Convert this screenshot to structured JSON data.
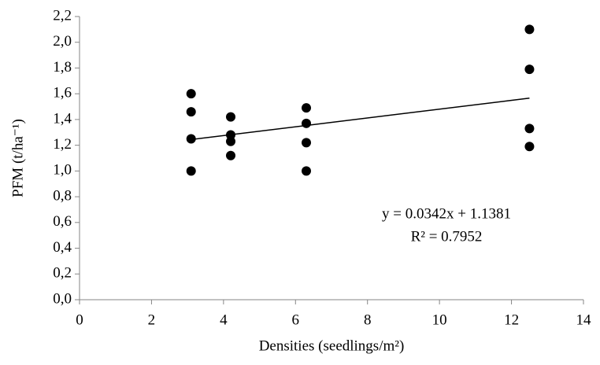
{
  "chart_data": {
    "type": "scatter",
    "xlabel": "Densities (seedlings/m²)",
    "ylabel": "PFM (t/ha⁻¹)",
    "x": [
      3.1,
      3.1,
      3.1,
      3.1,
      4.2,
      4.2,
      4.2,
      4.2,
      6.3,
      6.3,
      6.3,
      6.3,
      12.5,
      12.5,
      12.5,
      12.5
    ],
    "values": [
      1.6,
      1.46,
      1.25,
      1.0,
      1.42,
      1.28,
      1.23,
      1.12,
      1.49,
      1.37,
      1.22,
      1.0,
      2.1,
      1.79,
      1.33,
      1.19
    ],
    "color": "#000000",
    "trendline": {
      "x": [
        3.1,
        12.5
      ],
      "y": [
        1.244,
        1.566
      ]
    },
    "annotations": [
      "y = 0.0342x + 1.1381",
      "R² = 0.7952"
    ],
    "xlim": [
      0,
      14
    ],
    "xticks": [
      0,
      2,
      4,
      6,
      8,
      10,
      12,
      14
    ],
    "ylim": [
      0,
      2.2
    ],
    "yticks": [
      {
        "value": 0,
        "label": "0,0"
      },
      {
        "value": 0.2,
        "label": "0,2"
      },
      {
        "value": 0.4,
        "label": "0,4"
      },
      {
        "value": 0.6,
        "label": "0,6"
      },
      {
        "value": 0.8,
        "label": "0,8"
      },
      {
        "value": 1.0,
        "label": "1,0"
      },
      {
        "value": 1.2,
        "label": "1,2"
      },
      {
        "value": 1.4,
        "label": "1,4"
      },
      {
        "value": 1.6,
        "label": "1,6"
      },
      {
        "value": 1.8,
        "label": "1,8"
      },
      {
        "value": 2.0,
        "label": "2,0"
      },
      {
        "value": 2.2,
        "label": "2,2"
      }
    ],
    "grid": false
  }
}
